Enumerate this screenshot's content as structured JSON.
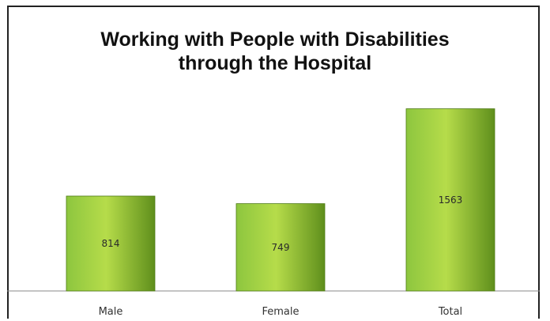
{
  "chart_data": {
    "type": "bar",
    "title": "Working with People with Disabilities through the Hospital",
    "title_lines": [
      "Working with People with Disabilities",
      "through the Hospital"
    ],
    "categories": [
      "Male",
      "Female",
      "Total"
    ],
    "values": [
      814,
      749,
      1563
    ],
    "data_labels": [
      "814",
      "749",
      "1563"
    ],
    "xlabel": "",
    "ylabel": "",
    "ylim": [
      0,
      1750
    ],
    "grid": false,
    "legend": "none",
    "colors": {
      "bar_light": "#b6dc4a",
      "bar_mid": "#8dc63f",
      "bar_dark": "#5f8f1c",
      "bar_edge": "#4d7a12"
    }
  }
}
